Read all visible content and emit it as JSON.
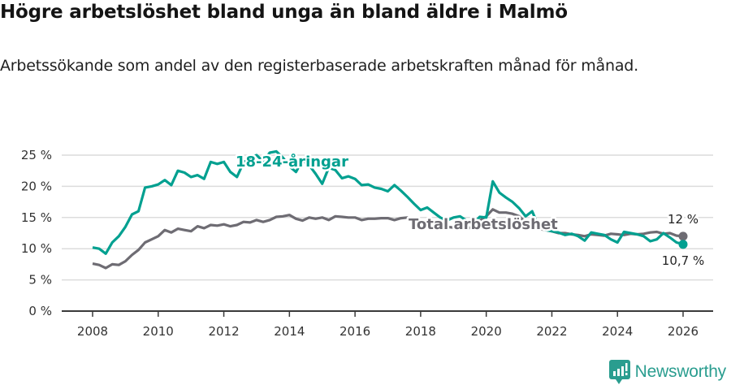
{
  "header": {
    "title": "Högre arbetslöshet bland unga än bland äldre i Malmö",
    "subtitle": "Arbetssökande som andel av den registerbaserade arbetskraften månad för månad."
  },
  "branding": {
    "name": "Newsworthy",
    "icon": "bar-chart-speech-bubble-icon",
    "color": "#2a9d8f"
  },
  "chart_data": {
    "type": "line",
    "title": "Högre arbetslöshet bland unga än bland äldre i Malmö",
    "subtitle": "Arbetssökande som andel av den registerbaserade arbetskraften månad för månad.",
    "xlabel": "",
    "ylabel": "",
    "ylim": [
      0,
      25
    ],
    "xlim": [
      2007.1,
      2026.6
    ],
    "y_ticks": [
      "0 %",
      "5 %",
      "10 %",
      "15 %",
      "20 %",
      "25 %"
    ],
    "x_ticks": [
      "2008",
      "2010",
      "2012",
      "2014",
      "2016",
      "2018",
      "2020",
      "2022",
      "2024",
      "2026"
    ],
    "grid": true,
    "legend": "inline labels",
    "series": [
      {
        "name": "18-24-åringar",
        "color": "#00a090",
        "end_label": "10,7 %",
        "x": [
          2008.0,
          2008.2,
          2008.4,
          2008.6,
          2008.8,
          2009.0,
          2009.2,
          2009.4,
          2009.6,
          2009.8,
          2010.0,
          2010.2,
          2010.4,
          2010.6,
          2010.8,
          2011.0,
          2011.2,
          2011.4,
          2011.6,
          2011.8,
          2012.0,
          2012.2,
          2012.4,
          2012.6,
          2012.8,
          2013.0,
          2013.2,
          2013.4,
          2013.6,
          2013.8,
          2014.0,
          2014.2,
          2014.4,
          2014.6,
          2014.8,
          2015.0,
          2015.2,
          2015.4,
          2015.6,
          2015.8,
          2016.0,
          2016.2,
          2016.4,
          2016.6,
          2016.8,
          2017.0,
          2017.2,
          2017.4,
          2017.6,
          2017.8,
          2018.0,
          2018.2,
          2018.4,
          2018.6,
          2018.8,
          2019.0,
          2019.2,
          2019.4,
          2019.6,
          2019.8,
          2020.0,
          2020.2,
          2020.4,
          2020.6,
          2020.8,
          2021.0,
          2021.2,
          2021.4,
          2021.6,
          2021.8,
          2022.0,
          2022.2,
          2022.4,
          2022.6,
          2022.8,
          2023.0,
          2023.2,
          2023.4,
          2023.6,
          2023.8,
          2024.0,
          2024.2,
          2024.4,
          2024.6,
          2024.8,
          2025.0,
          2025.2,
          2025.4,
          2025.6,
          2025.8,
          2026.0
        ],
        "values": [
          10.2,
          10.0,
          9.2,
          11.0,
          12.0,
          13.5,
          15.5,
          16.0,
          19.8,
          20.0,
          20.3,
          21.0,
          20.2,
          22.5,
          22.2,
          21.5,
          21.8,
          21.2,
          23.9,
          23.6,
          23.9,
          22.3,
          21.5,
          23.8,
          24.6,
          25.0,
          24.0,
          25.4,
          25.6,
          24.6,
          23.2,
          22.3,
          24.2,
          23.4,
          22.0,
          20.4,
          23.0,
          22.6,
          21.3,
          21.6,
          21.2,
          20.2,
          20.3,
          19.8,
          19.6,
          19.2,
          20.2,
          19.3,
          18.3,
          17.2,
          16.2,
          16.6,
          15.8,
          15.0,
          14.5,
          15.0,
          15.2,
          14.5,
          14.0,
          15.1,
          15.0,
          20.8,
          19.0,
          18.2,
          17.5,
          16.5,
          15.2,
          16.0,
          13.5,
          13.0,
          12.8,
          12.6,
          12.2,
          12.4,
          12.0,
          11.3,
          12.6,
          12.4,
          12.2,
          11.5,
          11.0,
          12.7,
          12.5,
          12.3,
          12.0,
          11.2,
          11.5,
          12.5,
          11.8,
          11.0,
          10.7
        ]
      },
      {
        "name": "Total arbetslöshet",
        "color": "#6e6c73",
        "end_label": "12 %",
        "x": [
          2008.0,
          2008.2,
          2008.4,
          2008.6,
          2008.8,
          2009.0,
          2009.2,
          2009.4,
          2009.6,
          2009.8,
          2010.0,
          2010.2,
          2010.4,
          2010.6,
          2010.8,
          2011.0,
          2011.2,
          2011.4,
          2011.6,
          2011.8,
          2012.0,
          2012.2,
          2012.4,
          2012.6,
          2012.8,
          2013.0,
          2013.2,
          2013.4,
          2013.6,
          2013.8,
          2014.0,
          2014.2,
          2014.4,
          2014.6,
          2014.8,
          2015.0,
          2015.2,
          2015.4,
          2015.6,
          2015.8,
          2016.0,
          2016.2,
          2016.4,
          2016.6,
          2016.8,
          2017.0,
          2017.2,
          2017.4,
          2017.6,
          2017.8,
          2018.0,
          2018.2,
          2018.4,
          2018.6,
          2018.8,
          2019.0,
          2019.2,
          2019.4,
          2019.6,
          2019.8,
          2020.0,
          2020.2,
          2020.4,
          2020.6,
          2020.8,
          2021.0,
          2021.2,
          2021.4,
          2021.6,
          2021.8,
          2022.0,
          2022.2,
          2022.4,
          2022.6,
          2022.8,
          2023.0,
          2023.2,
          2023.4,
          2023.6,
          2023.8,
          2024.0,
          2024.2,
          2024.4,
          2024.6,
          2024.8,
          2025.0,
          2025.2,
          2025.4,
          2025.6,
          2025.8,
          2026.0
        ],
        "values": [
          7.6,
          7.4,
          6.9,
          7.5,
          7.4,
          8.0,
          9.0,
          9.8,
          11.0,
          11.5,
          12.0,
          13.0,
          12.6,
          13.2,
          13.0,
          12.8,
          13.6,
          13.3,
          13.8,
          13.7,
          13.9,
          13.6,
          13.8,
          14.3,
          14.2,
          14.6,
          14.3,
          14.6,
          15.1,
          15.2,
          15.4,
          14.8,
          14.5,
          15.0,
          14.8,
          15.0,
          14.6,
          15.2,
          15.1,
          15.0,
          15.0,
          14.6,
          14.8,
          14.8,
          14.9,
          14.9,
          14.6,
          14.9,
          15.0,
          14.4,
          14.2,
          14.0,
          13.8,
          13.6,
          13.5,
          13.4,
          13.3,
          13.3,
          13.4,
          14.5,
          15.2,
          16.3,
          15.8,
          15.8,
          15.6,
          15.2,
          14.2,
          13.8,
          13.2,
          13.0,
          12.8,
          12.5,
          12.5,
          12.3,
          12.2,
          12.0,
          12.3,
          12.2,
          12.1,
          12.4,
          12.3,
          12.2,
          12.4,
          12.3,
          12.4,
          12.6,
          12.7,
          12.4,
          12.5,
          12.1,
          12.0
        ]
      }
    ]
  }
}
